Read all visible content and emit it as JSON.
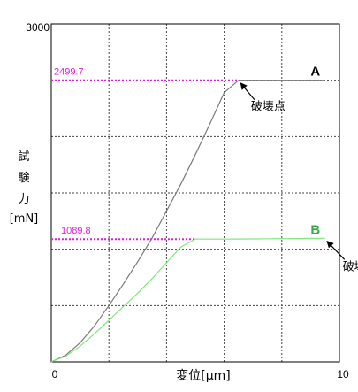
{
  "chart_data": {
    "type": "line",
    "xlabel": "変位[μm]",
    "ylabel_lines": [
      "試",
      "験",
      "力",
      "[mN]"
    ],
    "xlim": [
      0,
      10
    ],
    "ylim": [
      0,
      3000
    ],
    "x_tick_labels": [
      {
        "x": 0,
        "label": "0"
      },
      {
        "x": 10,
        "label": "10"
      }
    ],
    "y_tick_labels": [
      {
        "y": 3000,
        "label": "3000"
      }
    ],
    "gridlines_x": [
      2,
      4,
      6,
      8
    ],
    "gridlines_y": [
      500,
      1000,
      1500,
      2000,
      2500
    ],
    "grid": true,
    "series": [
      {
        "name": "A",
        "color": "#7a7a7a",
        "label_color": "#000000",
        "x": [
          0,
          0.5,
          1,
          1.5,
          2,
          2.5,
          3,
          3.5,
          4,
          4.5,
          5,
          5.5,
          6.0,
          6.5,
          7,
          7.5,
          8,
          8.5,
          9,
          9.5
        ],
        "y": [
          0,
          60,
          170,
          320,
          500,
          690,
          890,
          1100,
          1340,
          1580,
          1840,
          2110,
          2390,
          2499.7,
          2499.7,
          2499.7,
          2499.7,
          2499.7,
          2499.7,
          2499.7
        ]
      },
      {
        "name": "B",
        "color": "#7ee87e",
        "label_color": "#3aa84e",
        "x": [
          0,
          0.5,
          1,
          1.5,
          2,
          2.5,
          3,
          3.5,
          4,
          4.5,
          5,
          5.5,
          6,
          6.5,
          7,
          7.5,
          8,
          8.5,
          9,
          9.5
        ],
        "y": [
          0,
          50,
          140,
          250,
          370,
          490,
          610,
          740,
          880,
          1020,
          1089.8,
          1089.8,
          1090,
          1091,
          1092,
          1093,
          1094,
          1095,
          1096,
          1097
        ]
      }
    ],
    "annotations": [
      {
        "text": "2499.7",
        "value": 2499.7,
        "color": "#e020e0",
        "type": "reference-level"
      },
      {
        "text": "1089.8",
        "value": 1089.8,
        "color": "#e020e0",
        "type": "reference-level"
      },
      {
        "text": "破壊点",
        "series": "A",
        "type": "break-point-arrow"
      },
      {
        "text": "破壊点",
        "series": "B",
        "type": "break-point-arrow"
      }
    ]
  }
}
